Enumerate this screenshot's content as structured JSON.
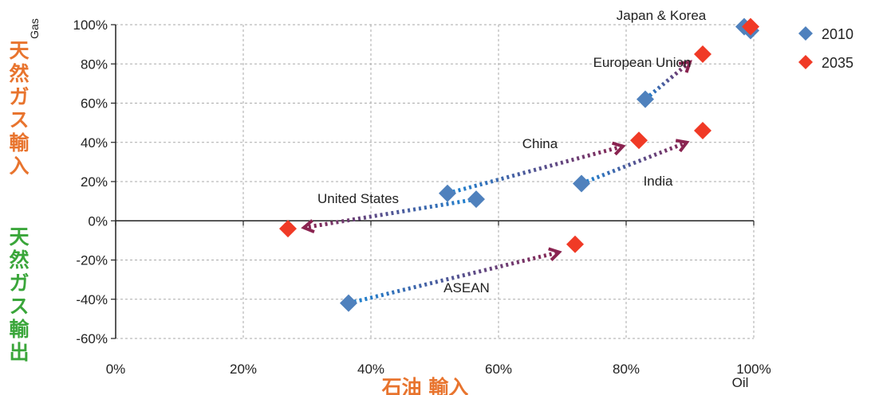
{
  "chart_data": {
    "type": "scatter",
    "xlim": [
      0,
      100
    ],
    "ylim": [
      -60,
      100
    ],
    "x_ticks": [
      0,
      20,
      40,
      60,
      80,
      100
    ],
    "y_ticks": [
      -60,
      -40,
      -20,
      0,
      20,
      40,
      60,
      80,
      100
    ],
    "x_tick_labels": [
      "0%",
      "20%",
      "40%",
      "60%",
      "80%",
      "100%"
    ],
    "y_tick_labels": [
      "-60%",
      "-40%",
      "-20%",
      "0%",
      "20%",
      "40%",
      "60%",
      "80%",
      "100%"
    ],
    "xlabel": "石油 輸入",
    "xlabel_corner": "Oil",
    "ylabel_corner": "Gas",
    "ylabel_positive": "天然ガス輸入",
    "ylabel_negative": "天然ガス輸出",
    "grid": true,
    "legend_position": "top-right",
    "series": [
      {
        "name": "2010",
        "color": "#4f81bd",
        "marker": "diamond",
        "points": [
          {
            "label": "Japan & Korea (Japan)",
            "x": 98.5,
            "y": 99
          },
          {
            "label": "Japan & Korea (Korea)",
            "x": 99.5,
            "y": 97
          },
          {
            "label": "European Union",
            "x": 83,
            "y": 62
          },
          {
            "label": "China",
            "x": 52,
            "y": 14
          },
          {
            "label": "United States",
            "x": 56.5,
            "y": 11
          },
          {
            "label": "India",
            "x": 73,
            "y": 19
          },
          {
            "label": "ASEAN",
            "x": 36.5,
            "y": -42
          }
        ]
      },
      {
        "name": "2035",
        "color": "#f03a26",
        "marker": "diamond",
        "points": [
          {
            "label": "Japan & Korea",
            "x": 99.5,
            "y": 99
          },
          {
            "label": "European Union",
            "x": 92,
            "y": 85
          },
          {
            "label": "China",
            "x": 82,
            "y": 41
          },
          {
            "label": "India",
            "x": 92,
            "y": 46
          },
          {
            "label": "United States",
            "x": 27,
            "y": -4
          },
          {
            "label": "ASEAN",
            "x": 72,
            "y": -12
          }
        ]
      }
    ],
    "arrows": [
      {
        "label": "United States",
        "from": [
          56.5,
          11
        ],
        "to": [
          29.5,
          -3.5
        ]
      },
      {
        "label": "China",
        "from": [
          52,
          14
        ],
        "to": [
          79.5,
          38
        ]
      },
      {
        "label": "India",
        "from": [
          73,
          19
        ],
        "to": [
          89.5,
          40
        ]
      },
      {
        "label": "European Union",
        "from": [
          83,
          62
        ],
        "to": [
          90,
          81
        ]
      },
      {
        "label": "ASEAN",
        "from": [
          36.5,
          -42
        ],
        "to": [
          69.5,
          -16
        ]
      }
    ],
    "annotations": [
      {
        "text": "Japan & Korea",
        "x": 85.5,
        "y": 102.5
      },
      {
        "text": "European Union",
        "x": 82.5,
        "y": 78.5
      },
      {
        "text": "China",
        "x": 66.5,
        "y": 37
      },
      {
        "text": "United States",
        "x": 38,
        "y": 9
      },
      {
        "text": "India",
        "x": 85,
        "y": 18
      },
      {
        "text": "ASEAN",
        "x": 55,
        "y": -36.5
      }
    ]
  }
}
